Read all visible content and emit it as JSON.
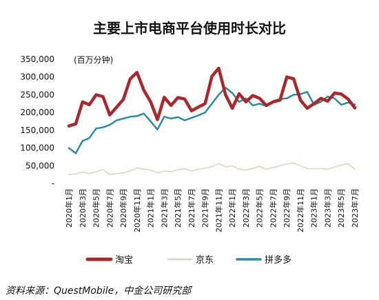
{
  "chart_data": {
    "type": "line",
    "title": "主要上市电商平台使用时长对比",
    "unit_label": "(百万分钟)",
    "source": "资料来源：QuestMobile，中金公司研究部",
    "ylim": [
      0,
      350000
    ],
    "yticks": [
      {
        "value": 0,
        "label": "-"
      },
      {
        "value": 50000,
        "label": "50,000"
      },
      {
        "value": 100000,
        "label": "100,000"
      },
      {
        "value": 150000,
        "label": "150,000"
      },
      {
        "value": 200000,
        "label": "200,000"
      },
      {
        "value": 250000,
        "label": "250,000"
      },
      {
        "value": 300000,
        "label": "300,000"
      },
      {
        "value": 350000,
        "label": "350,000"
      }
    ],
    "grid": false,
    "legend_position": "bottom",
    "x": [
      "2020年1月",
      "2020年2月",
      "2020年3月",
      "2020年4月",
      "2020年5月",
      "2020年6月",
      "2020年7月",
      "2020年8月",
      "2020年9月",
      "2020年10月",
      "2020年11月",
      "2020年12月",
      "2021年1月",
      "2021年2月",
      "2021年3月",
      "2021年4月",
      "2021年5月",
      "2021年6月",
      "2021年7月",
      "2021年8月",
      "2021年9月",
      "2021年10月",
      "2021年11月",
      "2021年12月",
      "2022年1月",
      "2022年2月",
      "2022年3月",
      "2022年4月",
      "2022年5月",
      "2022年6月",
      "2022年7月",
      "2022年8月",
      "2022年9月",
      "2022年10月",
      "2022年11月",
      "2022年12月",
      "2023年1月",
      "2023年2月",
      "2023年3月",
      "2023年4月",
      "2023年5月",
      "2023年6月",
      "2023年7月"
    ],
    "x_tick_labels": [
      "2020年1月",
      "2020年3月",
      "2020年5月",
      "2020年7月",
      "2020年9月",
      "2020年11月",
      "2021年1月",
      "2021年3月",
      "2021年5月",
      "2021年7月",
      "2021年9月",
      "2021年11月",
      "2022年1月",
      "2022年3月",
      "2022年5月",
      "2022年7月",
      "2022年9月",
      "2022年11月",
      "2023年1月",
      "2023年3月",
      "2023年5月",
      "2023年7月"
    ],
    "series": [
      {
        "name": "淘宝",
        "color": "#a8282c",
        "width": 4.5,
        "values": [
          162000,
          168000,
          230000,
          222000,
          250000,
          245000,
          193000,
          215000,
          237000,
          295000,
          313000,
          263000,
          230000,
          180000,
          243000,
          220000,
          242000,
          238000,
          205000,
          215000,
          225000,
          302000,
          325000,
          250000,
          212000,
          253000,
          230000,
          248000,
          240000,
          220000,
          230000,
          235000,
          300000,
          295000,
          235000,
          212000,
          225000,
          240000,
          232000,
          255000,
          252000,
          238000,
          213000
        ]
      },
      {
        "name": "京东",
        "color": "#d8d4c0",
        "width": 1.5,
        "values": [
          25000,
          27000,
          32000,
          28000,
          33000,
          39000,
          25000,
          28000,
          30000,
          35000,
          44000,
          40000,
          38000,
          30000,
          35000,
          33000,
          38000,
          42000,
          35000,
          40000,
          43000,
          47000,
          56000,
          47000,
          50000,
          40000,
          38000,
          42000,
          48000,
          40000,
          45000,
          50000,
          55000,
          58000,
          50000,
          42000,
          41000,
          42000,
          40000,
          46000,
          52000,
          56000,
          40000
        ]
      },
      {
        "name": "拼多多",
        "color": "#2a8aa0",
        "width": 2.5,
        "values": [
          100000,
          85000,
          120000,
          128000,
          155000,
          158000,
          165000,
          178000,
          183000,
          188000,
          190000,
          197000,
          175000,
          152000,
          188000,
          183000,
          187000,
          178000,
          185000,
          192000,
          200000,
          225000,
          250000,
          270000,
          255000,
          230000,
          240000,
          220000,
          225000,
          218000,
          232000,
          238000,
          240000,
          250000,
          252000,
          258000,
          222000,
          230000,
          245000,
          240000,
          222000,
          228000,
          222000
        ]
      }
    ]
  }
}
